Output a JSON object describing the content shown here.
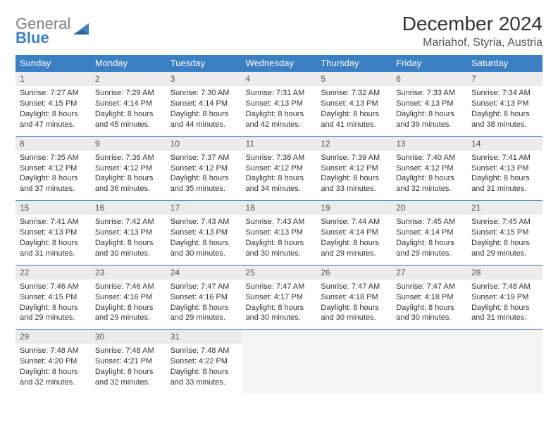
{
  "logo": {
    "text_1": "General",
    "text_2": "Blue"
  },
  "header": {
    "month_title": "December 2024",
    "location": "Mariahof, Styria, Austria"
  },
  "colors": {
    "header_bg": "#3b7fc4",
    "header_text": "#ffffff",
    "daynum_bg": "#ececec",
    "row_divider": "#3b7fc4",
    "logo_grey": "#808080",
    "logo_blue": "#3b7fc4"
  },
  "weekdays": [
    "Sunday",
    "Monday",
    "Tuesday",
    "Wednesday",
    "Thursday",
    "Friday",
    "Saturday"
  ],
  "days": {
    "1": {
      "sunrise": "Sunrise: 7:27 AM",
      "sunset": "Sunset: 4:15 PM",
      "daylight": "Daylight: 8 hours and 47 minutes."
    },
    "2": {
      "sunrise": "Sunrise: 7:29 AM",
      "sunset": "Sunset: 4:14 PM",
      "daylight": "Daylight: 8 hours and 45 minutes."
    },
    "3": {
      "sunrise": "Sunrise: 7:30 AM",
      "sunset": "Sunset: 4:14 PM",
      "daylight": "Daylight: 8 hours and 44 minutes."
    },
    "4": {
      "sunrise": "Sunrise: 7:31 AM",
      "sunset": "Sunset: 4:13 PM",
      "daylight": "Daylight: 8 hours and 42 minutes."
    },
    "5": {
      "sunrise": "Sunrise: 7:32 AM",
      "sunset": "Sunset: 4:13 PM",
      "daylight": "Daylight: 8 hours and 41 minutes."
    },
    "6": {
      "sunrise": "Sunrise: 7:33 AM",
      "sunset": "Sunset: 4:13 PM",
      "daylight": "Daylight: 8 hours and 39 minutes."
    },
    "7": {
      "sunrise": "Sunrise: 7:34 AM",
      "sunset": "Sunset: 4:13 PM",
      "daylight": "Daylight: 8 hours and 38 minutes."
    },
    "8": {
      "sunrise": "Sunrise: 7:35 AM",
      "sunset": "Sunset: 4:12 PM",
      "daylight": "Daylight: 8 hours and 37 minutes."
    },
    "9": {
      "sunrise": "Sunrise: 7:36 AM",
      "sunset": "Sunset: 4:12 PM",
      "daylight": "Daylight: 8 hours and 36 minutes."
    },
    "10": {
      "sunrise": "Sunrise: 7:37 AM",
      "sunset": "Sunset: 4:12 PM",
      "daylight": "Daylight: 8 hours and 35 minutes."
    },
    "11": {
      "sunrise": "Sunrise: 7:38 AM",
      "sunset": "Sunset: 4:12 PM",
      "daylight": "Daylight: 8 hours and 34 minutes."
    },
    "12": {
      "sunrise": "Sunrise: 7:39 AM",
      "sunset": "Sunset: 4:12 PM",
      "daylight": "Daylight: 8 hours and 33 minutes."
    },
    "13": {
      "sunrise": "Sunrise: 7:40 AM",
      "sunset": "Sunset: 4:12 PM",
      "daylight": "Daylight: 8 hours and 32 minutes."
    },
    "14": {
      "sunrise": "Sunrise: 7:41 AM",
      "sunset": "Sunset: 4:13 PM",
      "daylight": "Daylight: 8 hours and 31 minutes."
    },
    "15": {
      "sunrise": "Sunrise: 7:41 AM",
      "sunset": "Sunset: 4:13 PM",
      "daylight": "Daylight: 8 hours and 31 minutes."
    },
    "16": {
      "sunrise": "Sunrise: 7:42 AM",
      "sunset": "Sunset: 4:13 PM",
      "daylight": "Daylight: 8 hours and 30 minutes."
    },
    "17": {
      "sunrise": "Sunrise: 7:43 AM",
      "sunset": "Sunset: 4:13 PM",
      "daylight": "Daylight: 8 hours and 30 minutes."
    },
    "18": {
      "sunrise": "Sunrise: 7:43 AM",
      "sunset": "Sunset: 4:13 PM",
      "daylight": "Daylight: 8 hours and 30 minutes."
    },
    "19": {
      "sunrise": "Sunrise: 7:44 AM",
      "sunset": "Sunset: 4:14 PM",
      "daylight": "Daylight: 8 hours and 29 minutes."
    },
    "20": {
      "sunrise": "Sunrise: 7:45 AM",
      "sunset": "Sunset: 4:14 PM",
      "daylight": "Daylight: 8 hours and 29 minutes."
    },
    "21": {
      "sunrise": "Sunrise: 7:45 AM",
      "sunset": "Sunset: 4:15 PM",
      "daylight": "Daylight: 8 hours and 29 minutes."
    },
    "22": {
      "sunrise": "Sunrise: 7:46 AM",
      "sunset": "Sunset: 4:15 PM",
      "daylight": "Daylight: 8 hours and 29 minutes."
    },
    "23": {
      "sunrise": "Sunrise: 7:46 AM",
      "sunset": "Sunset: 4:16 PM",
      "daylight": "Daylight: 8 hours and 29 minutes."
    },
    "24": {
      "sunrise": "Sunrise: 7:47 AM",
      "sunset": "Sunset: 4:16 PM",
      "daylight": "Daylight: 8 hours and 29 minutes."
    },
    "25": {
      "sunrise": "Sunrise: 7:47 AM",
      "sunset": "Sunset: 4:17 PM",
      "daylight": "Daylight: 8 hours and 30 minutes."
    },
    "26": {
      "sunrise": "Sunrise: 7:47 AM",
      "sunset": "Sunset: 4:18 PM",
      "daylight": "Daylight: 8 hours and 30 minutes."
    },
    "27": {
      "sunrise": "Sunrise: 7:47 AM",
      "sunset": "Sunset: 4:18 PM",
      "daylight": "Daylight: 8 hours and 30 minutes."
    },
    "28": {
      "sunrise": "Sunrise: 7:48 AM",
      "sunset": "Sunset: 4:19 PM",
      "daylight": "Daylight: 8 hours and 31 minutes."
    },
    "29": {
      "sunrise": "Sunrise: 7:48 AM",
      "sunset": "Sunset: 4:20 PM",
      "daylight": "Daylight: 8 hours and 32 minutes."
    },
    "30": {
      "sunrise": "Sunrise: 7:48 AM",
      "sunset": "Sunset: 4:21 PM",
      "daylight": "Daylight: 8 hours and 32 minutes."
    },
    "31": {
      "sunrise": "Sunrise: 7:48 AM",
      "sunset": "Sunset: 4:22 PM",
      "daylight": "Daylight: 8 hours and 33 minutes."
    }
  },
  "day_labels": {
    "1": "1",
    "2": "2",
    "3": "3",
    "4": "4",
    "5": "5",
    "6": "6",
    "7": "7",
    "8": "8",
    "9": "9",
    "10": "10",
    "11": "11",
    "12": "12",
    "13": "13",
    "14": "14",
    "15": "15",
    "16": "16",
    "17": "17",
    "18": "18",
    "19": "19",
    "20": "20",
    "21": "21",
    "22": "22",
    "23": "23",
    "24": "24",
    "25": "25",
    "26": "26",
    "27": "27",
    "28": "28",
    "29": "29",
    "30": "30",
    "31": "31"
  }
}
